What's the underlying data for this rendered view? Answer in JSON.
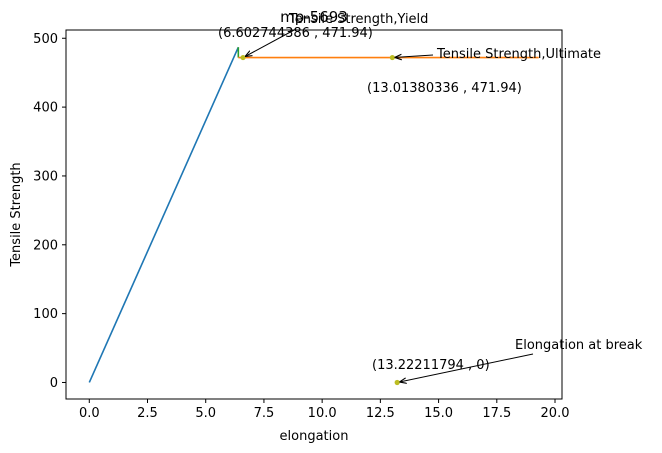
{
  "chart_data": {
    "type": "line",
    "title": "mp-5693",
    "xlabel": "elongation",
    "ylabel": "Tensile Strength",
    "xlim": [
      -1.0,
      20.3
    ],
    "ylim": [
      -24,
      512
    ],
    "xticks": [
      0.0,
      2.5,
      5.0,
      7.5,
      10.0,
      12.5,
      15.0,
      17.5,
      20.0
    ],
    "xtick_labels": [
      "0.0",
      "2.5",
      "5.0",
      "7.5",
      "10.0",
      "12.5",
      "15.0",
      "17.5",
      "20.0"
    ],
    "yticks": [
      0,
      100,
      200,
      300,
      400,
      500
    ],
    "ytick_labels": [
      "0",
      "100",
      "200",
      "300",
      "400",
      "500"
    ],
    "grid": false,
    "series": [
      {
        "color": "#1f77b4",
        "x": [
          0.0,
          6.4
        ],
        "y": [
          0,
          487
        ]
      },
      {
        "color": "#2ca02c",
        "x": [
          6.4,
          6.4
        ],
        "y": [
          487,
          471.94
        ]
      },
      {
        "color": "#ff7f0e",
        "x": [
          6.4,
          19.3
        ],
        "y": [
          471.94,
          471.94
        ]
      }
    ],
    "points": [
      {
        "x": 6.602744386,
        "y": 471.94,
        "color": "#bcbd22"
      },
      {
        "x": 13.01380336,
        "y": 471.94,
        "color": "#bcbd22"
      },
      {
        "x": 13.22211794,
        "y": 0,
        "color": "#bcbd22"
      }
    ],
    "annotations": [
      {
        "text": "Tensile Strength,Yield",
        "target_x": 6.602744386,
        "target_y": 471.94
      },
      {
        "text": "(6.602744386 , 471.94)"
      },
      {
        "text": "Tensile Strength,Ultimate",
        "target_x": 13.01380336,
        "target_y": 471.94
      },
      {
        "text": "(13.01380336 , 471.94)"
      },
      {
        "text": "Elongation at break",
        "target_x": 13.22211794,
        "target_y": 0
      },
      {
        "text": "(13.22211794 , 0)"
      }
    ]
  }
}
